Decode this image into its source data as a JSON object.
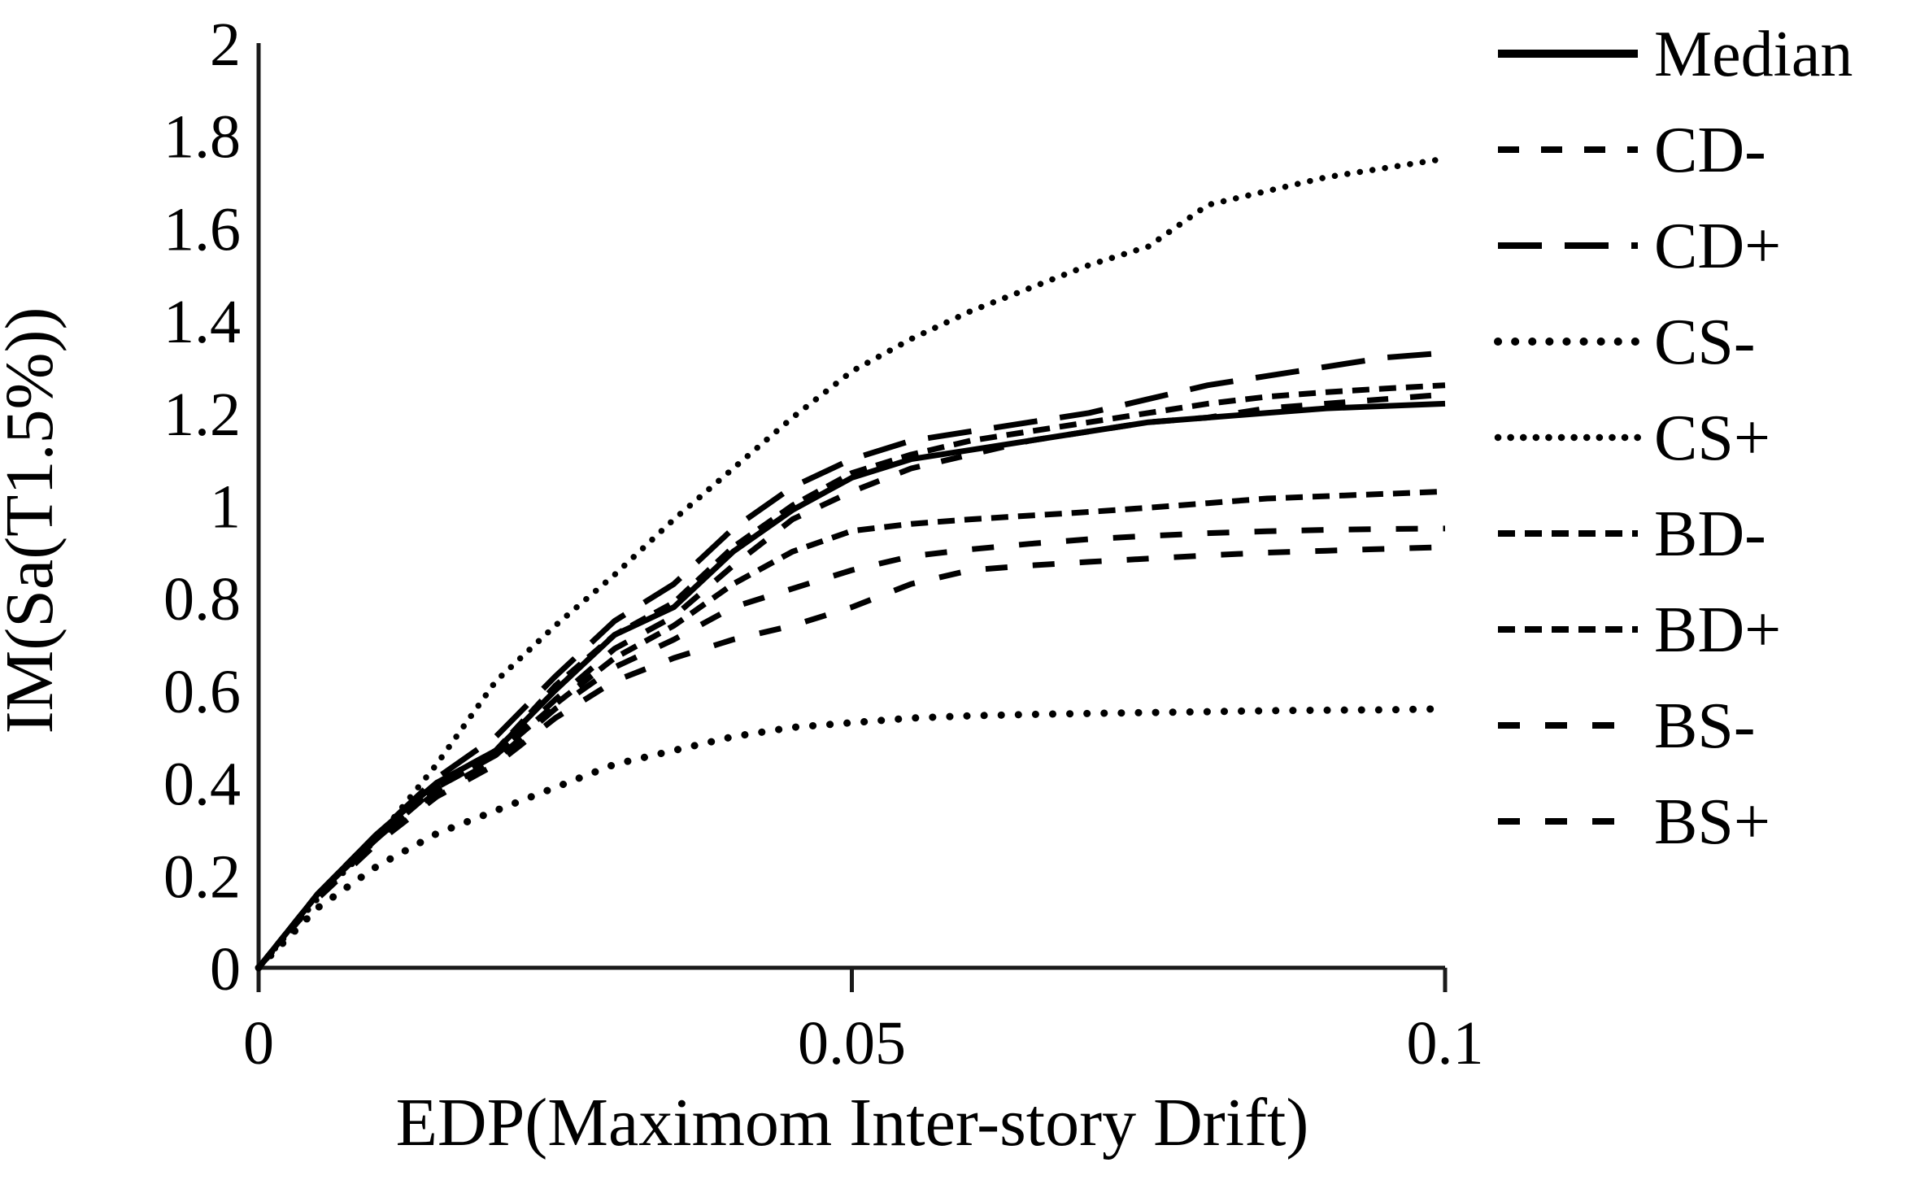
{
  "colors": {
    "line": "#000000",
    "axis": "#1a1a1a",
    "background": "#ffffff"
  },
  "chart_data": {
    "type": "line",
    "title": "",
    "xlabel": "EDP(Maximom Inter-story Drift)",
    "ylabel": "IM(Sa(T1.5%))",
    "xlim": [
      0,
      0.1
    ],
    "ylim": [
      0,
      2
    ],
    "grid": false,
    "legend_position": "right",
    "x_ticks": [
      {
        "value": 0,
        "label": "0"
      },
      {
        "value": 0.05,
        "label": "0.05"
      },
      {
        "value": 0.1,
        "label": "0.1"
      }
    ],
    "y_ticks": [
      {
        "value": 0,
        "label": "0"
      },
      {
        "value": 0.2,
        "label": "0.2"
      },
      {
        "value": 0.4,
        "label": "0.4"
      },
      {
        "value": 0.6,
        "label": "0.6"
      },
      {
        "value": 0.8,
        "label": "0.8"
      },
      {
        "value": 1,
        "label": "1"
      },
      {
        "value": 1.2,
        "label": "1.2"
      },
      {
        "value": 1.4,
        "label": "1.4"
      },
      {
        "value": 1.6,
        "label": "1.6"
      },
      {
        "value": 1.8,
        "label": "1.8"
      },
      {
        "value": 2,
        "label": "2"
      }
    ],
    "x": [
      0,
      0.005,
      0.01,
      0.015,
      0.02,
      0.025,
      0.03,
      0.035,
      0.04,
      0.045,
      0.05,
      0.055,
      0.06,
      0.065,
      0.07,
      0.075,
      0.08,
      0.085,
      0.09,
      0.095,
      0.1
    ],
    "series": [
      {
        "name": "Median",
        "style": "solid",
        "values": [
          0,
          0.16,
          0.29,
          0.4,
          0.47,
          0.6,
          0.72,
          0.78,
          0.9,
          0.99,
          1.06,
          1.1,
          1.12,
          1.14,
          1.16,
          1.18,
          1.19,
          1.2,
          1.21,
          1.215,
          1.22
        ]
      },
      {
        "name": "CD-",
        "style": "dash-medium",
        "values": [
          0,
          0.16,
          0.28,
          0.39,
          0.46,
          0.58,
          0.69,
          0.76,
          0.87,
          0.97,
          1.03,
          1.08,
          1.11,
          1.14,
          1.16,
          1.18,
          1.19,
          1.21,
          1.22,
          1.23,
          1.24
        ]
      },
      {
        "name": "CD+",
        "style": "dash-long",
        "values": [
          0,
          0.16,
          0.29,
          0.41,
          0.5,
          0.63,
          0.75,
          0.83,
          0.95,
          1.04,
          1.1,
          1.14,
          1.16,
          1.18,
          1.2,
          1.23,
          1.26,
          1.28,
          1.3,
          1.32,
          1.33
        ]
      },
      {
        "name": "CS-",
        "style": "dotted-large",
        "values": [
          0,
          0.13,
          0.22,
          0.29,
          0.34,
          0.39,
          0.44,
          0.47,
          0.5,
          0.52,
          0.53,
          0.54,
          0.545,
          0.548,
          0.55,
          0.552,
          0.554,
          0.556,
          0.557,
          0.558,
          0.56
        ]
      },
      {
        "name": "CS+",
        "style": "dotted-small",
        "values": [
          0,
          0.15,
          0.28,
          0.44,
          0.62,
          0.74,
          0.85,
          0.97,
          1.08,
          1.19,
          1.29,
          1.36,
          1.42,
          1.47,
          1.52,
          1.56,
          1.65,
          1.68,
          1.71,
          1.73,
          1.75
        ]
      },
      {
        "name": "BD-",
        "style": "dash-short",
        "values": [
          0,
          0.16,
          0.28,
          0.39,
          0.46,
          0.57,
          0.67,
          0.74,
          0.83,
          0.9,
          0.945,
          0.96,
          0.97,
          0.978,
          0.986,
          0.995,
          1.005,
          1.015,
          1.02,
          1.025,
          1.03
        ]
      },
      {
        "name": "BD+",
        "style": "dash-short",
        "values": [
          0,
          0.16,
          0.29,
          0.4,
          0.47,
          0.61,
          0.72,
          0.79,
          0.91,
          1.0,
          1.07,
          1.11,
          1.14,
          1.16,
          1.18,
          1.2,
          1.22,
          1.235,
          1.245,
          1.253,
          1.26
        ]
      },
      {
        "name": "BS-",
        "style": "dash-sparse",
        "values": [
          0,
          0.16,
          0.28,
          0.38,
          0.45,
          0.56,
          0.65,
          0.71,
          0.78,
          0.82,
          0.86,
          0.89,
          0.905,
          0.917,
          0.927,
          0.934,
          0.94,
          0.944,
          0.947,
          0.949,
          0.95
        ]
      },
      {
        "name": "BS+",
        "style": "dash-sparse",
        "values": [
          0,
          0.15,
          0.27,
          0.37,
          0.44,
          0.54,
          0.62,
          0.67,
          0.71,
          0.74,
          0.78,
          0.83,
          0.86,
          0.87,
          0.878,
          0.885,
          0.892,
          0.898,
          0.902,
          0.906,
          0.91
        ]
      }
    ],
    "legend": [
      "Median",
      "CD-",
      "CD+",
      "CS-",
      "CS+",
      "BD-",
      "BD+",
      "BS-",
      "BS+"
    ]
  }
}
